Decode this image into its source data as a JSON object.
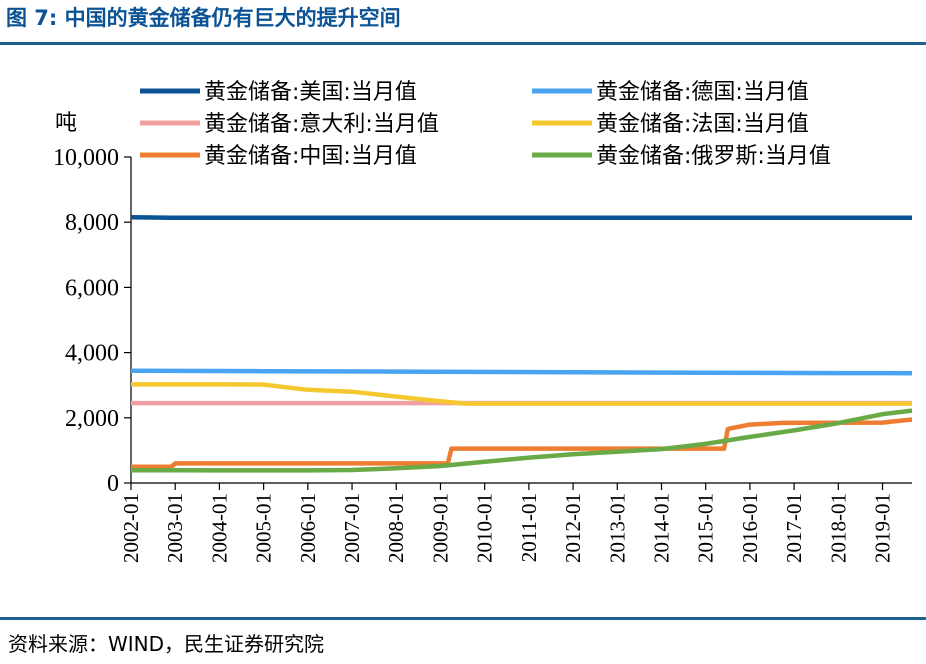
{
  "figure_title": "图 7:  中国的黄金储备仍有巨大的提升空间",
  "source": "资料来源：WIND，民生证券研究院",
  "chart_data": {
    "type": "line",
    "unit_label": "吨",
    "ylim": [
      0,
      10000
    ],
    "y_ticks": [
      "0",
      "2,000",
      "4,000",
      "6,000",
      "8,000",
      "10,000"
    ],
    "x_ticks": [
      "2002-01",
      "2003-01",
      "2004-01",
      "2005-01",
      "2006-01",
      "2007-01",
      "2008-01",
      "2009-01",
      "2010-01",
      "2011-01",
      "2012-01",
      "2013-01",
      "2014-01",
      "2015-01",
      "2016-01",
      "2017-01",
      "2018-01",
      "2019-01"
    ],
    "x_range": [
      "2002-01",
      "2019-09"
    ],
    "grid": false,
    "legend_position": "top",
    "series": [
      {
        "name": "黄金储备:美国:当月值",
        "color": "#0b5394",
        "points": [
          [
            "2002-01",
            8149
          ],
          [
            "2002-12",
            8135
          ],
          [
            "2019-09",
            8134
          ]
        ]
      },
      {
        "name": "黄金储备:德国:当月值",
        "color": "#4aa3f0",
        "points": [
          [
            "2002-01",
            3446
          ],
          [
            "2005-01",
            3428
          ],
          [
            "2008-01",
            3417
          ],
          [
            "2012-01",
            3396
          ],
          [
            "2015-01",
            3384
          ],
          [
            "2018-01",
            3372
          ],
          [
            "2019-09",
            3367
          ]
        ]
      },
      {
        "name": "黄金储备:意大利:当月值",
        "color": "#f0a0a0",
        "points": [
          [
            "2002-01",
            2452
          ],
          [
            "2019-09",
            2452
          ]
        ]
      },
      {
        "name": "黄金储备:法国:当月值",
        "color": "#f5c830",
        "points": [
          [
            "2002-01",
            3025
          ],
          [
            "2003-01",
            3025
          ],
          [
            "2004-01",
            3024
          ],
          [
            "2005-01",
            3022
          ],
          [
            "2005-06",
            2950
          ],
          [
            "2006-01",
            2860
          ],
          [
            "2007-01",
            2800
          ],
          [
            "2008-01",
            2650
          ],
          [
            "2009-01",
            2510
          ],
          [
            "2009-08",
            2436
          ],
          [
            "2019-09",
            2436
          ]
        ]
      },
      {
        "name": "黄金储备:中国:当月值",
        "color": "#ee7d31",
        "points": [
          [
            "2002-01",
            500
          ],
          [
            "2002-12",
            500
          ],
          [
            "2003-01",
            600
          ],
          [
            "2009-03",
            600
          ],
          [
            "2009-04",
            1054
          ],
          [
            "2015-06",
            1054
          ],
          [
            "2015-07",
            1658
          ],
          [
            "2016-01",
            1790
          ],
          [
            "2016-10",
            1843
          ],
          [
            "2019-01",
            1853
          ],
          [
            "2019-09",
            1948
          ]
        ]
      },
      {
        "name": "黄金储备:俄罗斯:当月值",
        "color": "#6aaa46",
        "points": [
          [
            "2002-01",
            390
          ],
          [
            "2003-01",
            390
          ],
          [
            "2004-01",
            387
          ],
          [
            "2005-01",
            387
          ],
          [
            "2006-01",
            387
          ],
          [
            "2007-01",
            400
          ],
          [
            "2008-01",
            450
          ],
          [
            "2009-01",
            520
          ],
          [
            "2010-01",
            650
          ],
          [
            "2011-01",
            780
          ],
          [
            "2012-01",
            880
          ],
          [
            "2013-01",
            960
          ],
          [
            "2014-01",
            1040
          ],
          [
            "2015-01",
            1200
          ],
          [
            "2016-01",
            1415
          ],
          [
            "2017-01",
            1615
          ],
          [
            "2018-01",
            1838
          ],
          [
            "2019-01",
            2110
          ],
          [
            "2019-09",
            2220
          ]
        ]
      }
    ]
  }
}
